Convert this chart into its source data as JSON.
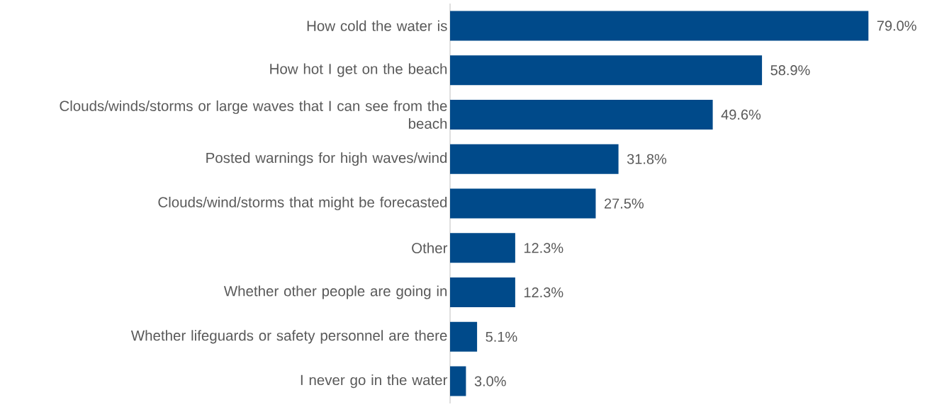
{
  "chart_data": {
    "type": "bar",
    "orientation": "horizontal",
    "color": "#004a8a",
    "categories": [
      "How cold the water is",
      "How hot I get on the beach",
      "Clouds/winds/storms or large waves that I can see from the beach",
      "Posted warnings for high waves/wind",
      "Clouds/wind/storms that might be forecasted",
      "Other",
      "Whether other people are going in",
      "Whether lifeguards or safety personnel are there",
      "I never go in the water"
    ],
    "values": [
      79.0,
      58.9,
      49.6,
      31.8,
      27.5,
      12.3,
      12.3,
      5.1,
      3.0
    ],
    "value_labels": [
      "79.0%",
      "58.9%",
      "49.6%",
      "31.8%",
      "27.5%",
      "12.3%",
      "12.3%",
      "5.1%",
      "3.0%"
    ],
    "grid": false
  }
}
